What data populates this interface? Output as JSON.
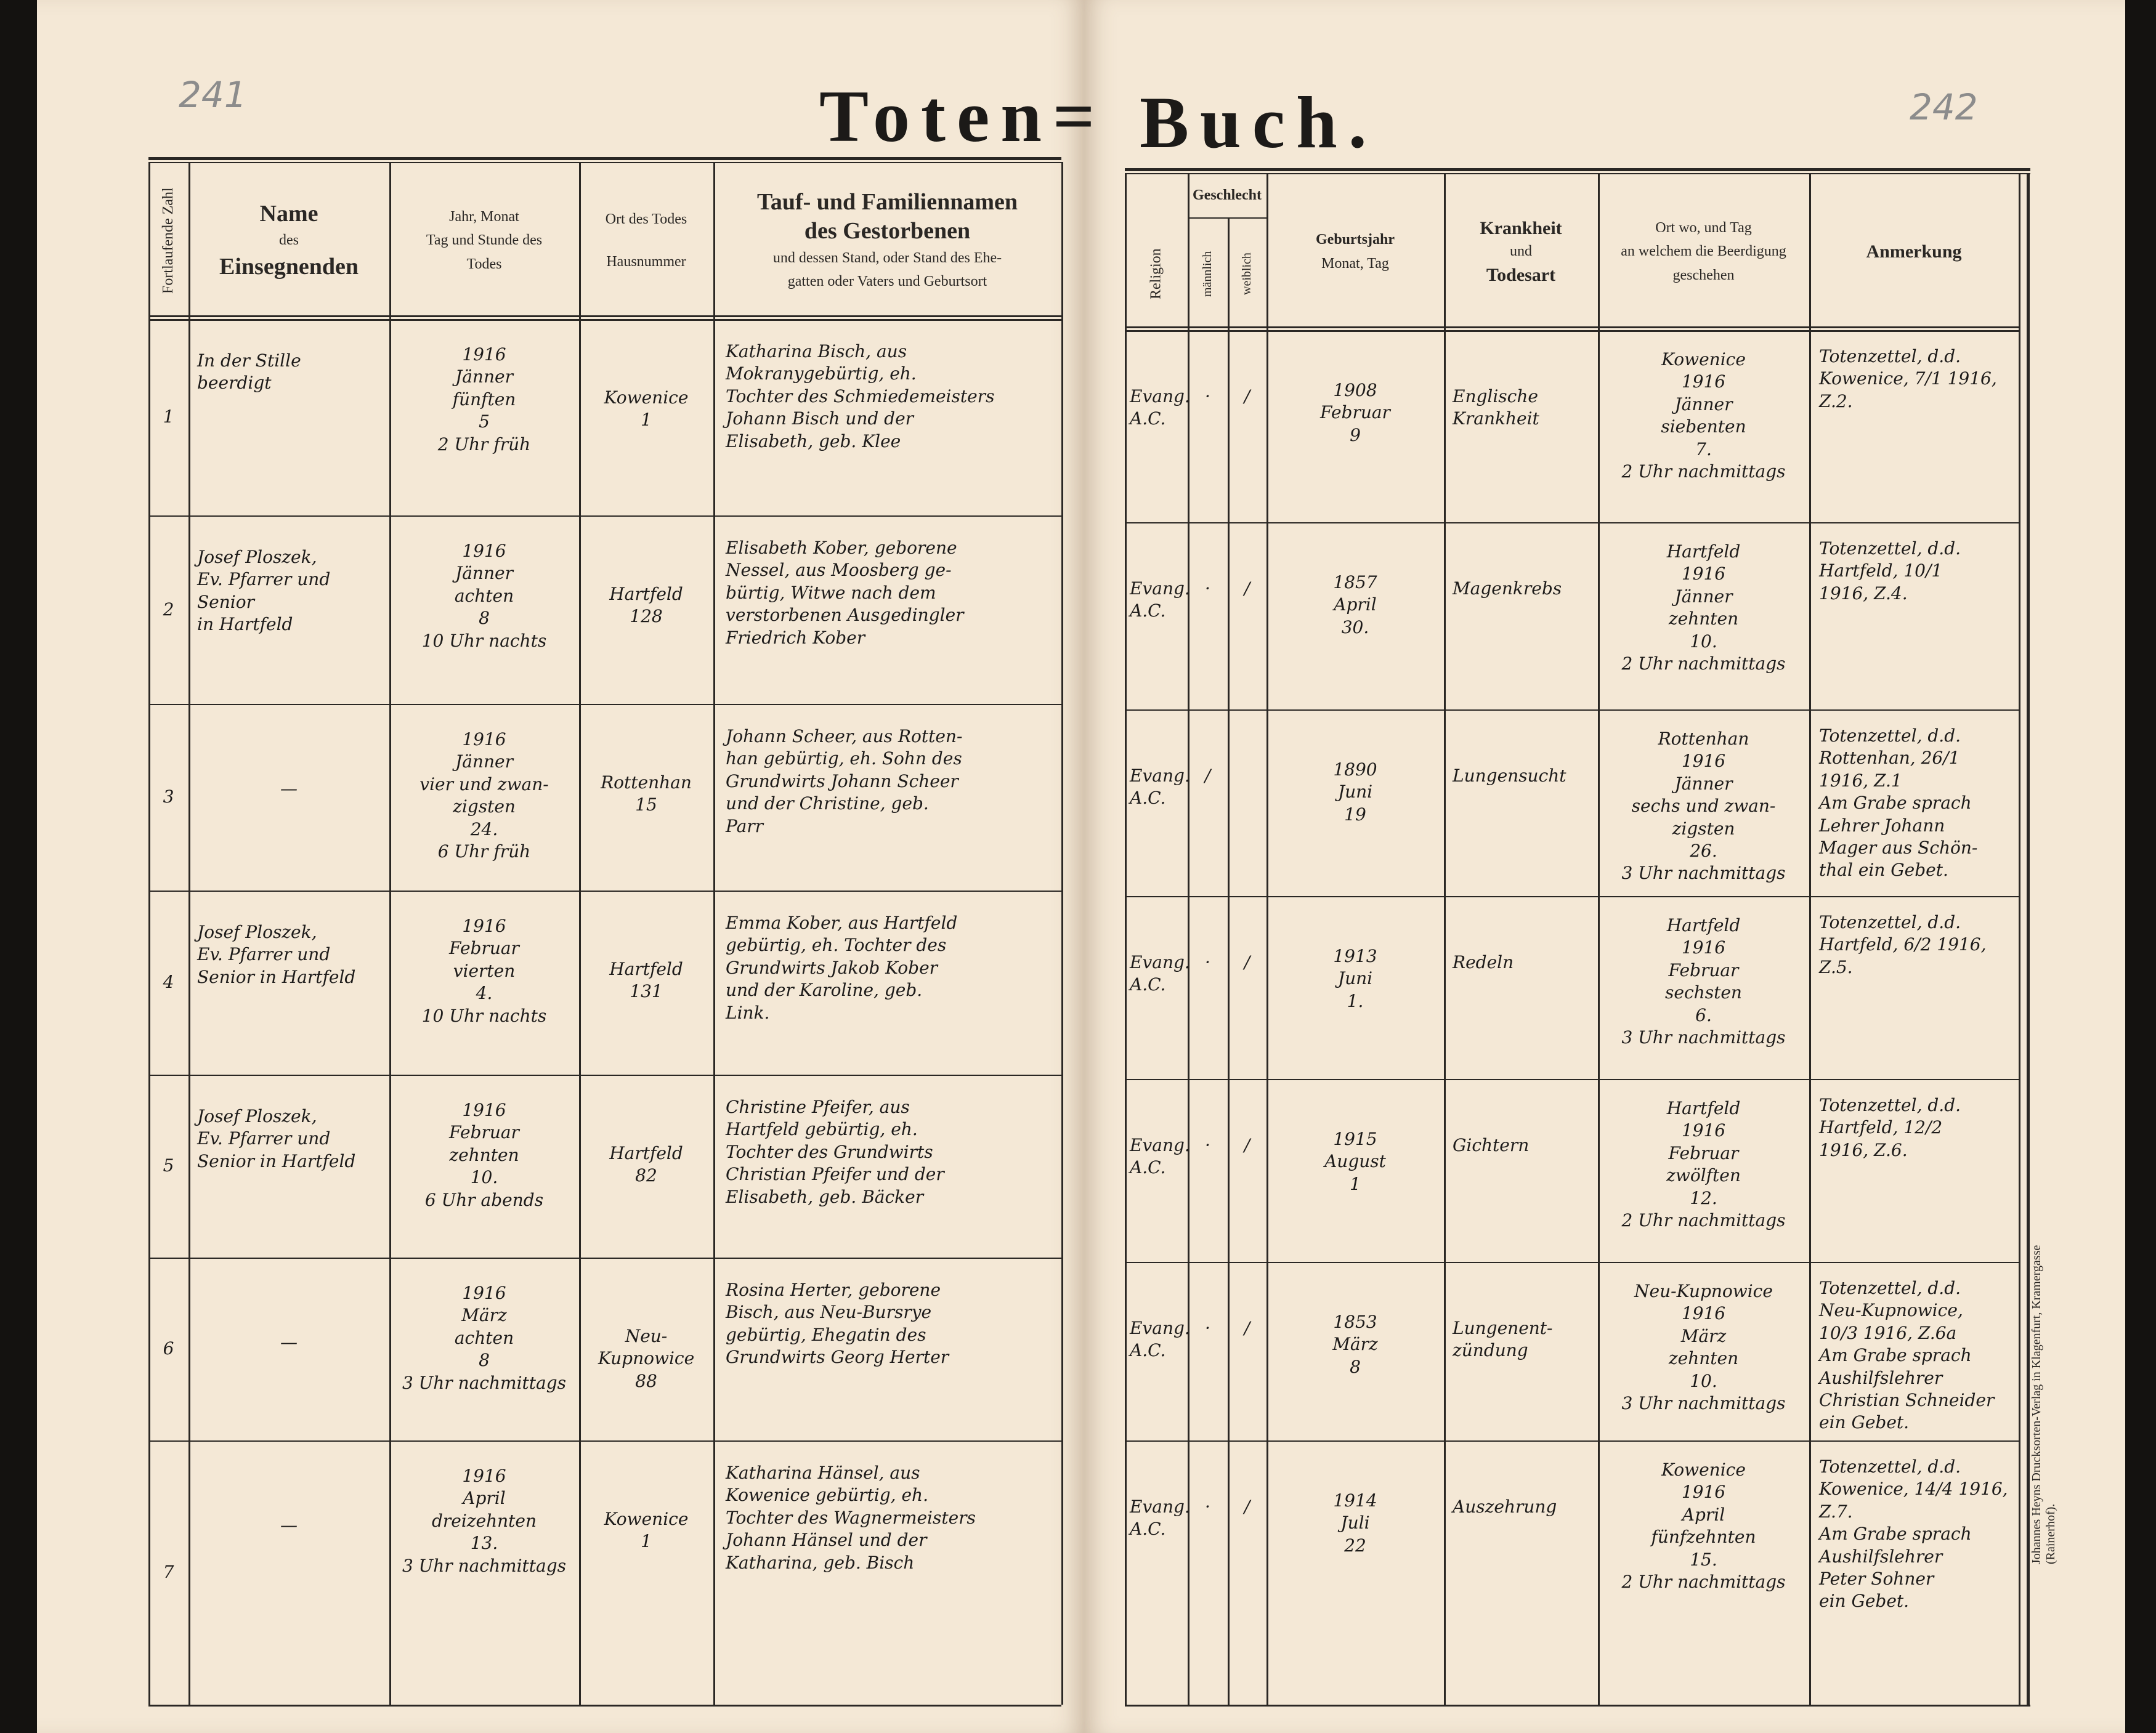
{
  "page_numbers": {
    "left": "241",
    "right": "242"
  },
  "title": {
    "left": "Toten=",
    "right": "Buch."
  },
  "left_headers": {
    "number": "Fortlaufende Zahl",
    "officiant": {
      "line1": "Name",
      "line2": "des",
      "line3": "Einsegnenden"
    },
    "death_date": {
      "line1": "Jahr, Monat",
      "line2": "Tag und Stunde des",
      "line3": "Todes"
    },
    "death_place": {
      "line1": "Ort des Todes",
      "line2": "Hausnummer"
    },
    "deceased": {
      "line1": "Tauf- und Familiennamen",
      "line2": "des Gestorbenen",
      "line3": "und dessen Stand, oder Stand des Ehe-",
      "line4": "gatten oder Vaters und Geburtsort"
    }
  },
  "right_headers": {
    "religion": "Religion",
    "sex": "Geschlecht",
    "male": "männlich",
    "female": "weiblich",
    "birth": {
      "line1": "Geburtsjahr",
      "line2": "Monat, Tag"
    },
    "cause": {
      "line1": "Krankheit",
      "line2": "und",
      "line3": "Todesart"
    },
    "burial": {
      "line1": "Ort wo, und Tag",
      "line2": "an welchem die Beerdigung",
      "line3": "geschehen"
    },
    "remarks": "Anmerkung"
  },
  "entries": [
    {
      "num": "1",
      "officiant": [
        "In der Stille",
        "beerdigt"
      ],
      "death_date": [
        "1916",
        "Jänner",
        "fünften",
        "5",
        "2 Uhr früh"
      ],
      "death_place": [
        "Kowenice",
        "1"
      ],
      "deceased": [
        "Katharina Bisch, aus",
        "Mokranygebürtig, eh.",
        "Tochter des Schmiedemeisters",
        "Johann Bisch und der",
        "Elisabeth, geb. Klee"
      ],
      "religion": [
        "Evang.",
        "A.C."
      ],
      "male": "·",
      "female": "/",
      "birth": [
        "1908",
        "Februar",
        "9"
      ],
      "cause": [
        "Englische",
        "Krankheit"
      ],
      "burial": [
        "Kowenice",
        "1916",
        "Jänner",
        "siebenten",
        "7.",
        "2 Uhr nachmittags"
      ],
      "remarks": [
        "Totenzettel, d.d.",
        "Kowenice, 7/1 1916,",
        "Z.2."
      ]
    },
    {
      "num": "2",
      "officiant": [
        "Josef Ploszek,",
        "Ev. Pfarrer und Senior",
        "in Hartfeld"
      ],
      "death_date": [
        "1916",
        "Jänner",
        "achten",
        "8",
        "10 Uhr nachts"
      ],
      "death_place": [
        "Hartfeld",
        "128"
      ],
      "deceased": [
        "Elisabeth Kober, geborene",
        "Nessel, aus Moosberg ge-",
        "bürtig, Witwe nach dem",
        "verstorbenen Ausgedingler",
        "Friedrich Kober"
      ],
      "religion": [
        "Evang.",
        "A.C."
      ],
      "male": "·",
      "female": "/",
      "birth": [
        "1857",
        "April",
        "30."
      ],
      "cause": [
        "Magenkrebs"
      ],
      "burial": [
        "Hartfeld",
        "1916",
        "Jänner",
        "zehnten",
        "10.",
        "2 Uhr nachmittags"
      ],
      "remarks": [
        "Totenzettel, d.d.",
        "Hartfeld, 10/1",
        "1916, Z.4."
      ]
    },
    {
      "num": "3",
      "officiant": [
        "—"
      ],
      "death_date": [
        "1916",
        "Jänner",
        "vier und zwan-",
        "zigsten",
        "24.",
        "6 Uhr früh"
      ],
      "death_place": [
        "Rottenhan",
        "15"
      ],
      "deceased": [
        "Johann Scheer, aus Rotten-",
        "han gebürtig, eh. Sohn des",
        "Grundwirts Johann Scheer",
        "und der Christine, geb.",
        "Parr"
      ],
      "religion": [
        "Evang.",
        "A.C."
      ],
      "male": "/",
      "female": "",
      "birth": [
        "1890",
        "Juni",
        "19"
      ],
      "cause": [
        "Lungensucht"
      ],
      "burial": [
        "Rottenhan",
        "1916",
        "Jänner",
        "sechs und zwan-",
        "zigsten",
        "26.",
        "3 Uhr nachmittags"
      ],
      "remarks": [
        "Totenzettel, d.d.",
        "Rottenhan, 26/1",
        "1916, Z.1",
        "Am Grabe sprach",
        "Lehrer Johann",
        "Mager aus Schön-",
        "thal ein Gebet."
      ]
    },
    {
      "num": "4",
      "officiant": [
        "Josef Ploszek,",
        "Ev. Pfarrer und",
        "Senior in Hartfeld"
      ],
      "death_date": [
        "1916",
        "Februar",
        "vierten",
        "4.",
        "10 Uhr nachts"
      ],
      "death_place": [
        "Hartfeld",
        "131"
      ],
      "deceased": [
        "Emma Kober, aus Hartfeld",
        "gebürtig, eh. Tochter des",
        "Grundwirts Jakob Kober",
        "und der Karoline, geb.",
        "Link."
      ],
      "religion": [
        "Evang.",
        "A.C."
      ],
      "male": "·",
      "female": "/",
      "birth": [
        "1913",
        "Juni",
        "1."
      ],
      "cause": [
        "Redeln"
      ],
      "burial": [
        "Hartfeld",
        "1916",
        "Februar",
        "sechsten",
        "6.",
        "3 Uhr nachmittags"
      ],
      "remarks": [
        "Totenzettel, d.d.",
        "Hartfeld, 6/2 1916,",
        "Z.5."
      ]
    },
    {
      "num": "5",
      "officiant": [
        "Josef Ploszek,",
        "Ev. Pfarrer und",
        "Senior in Hartfeld"
      ],
      "death_date": [
        "1916",
        "Februar",
        "zehnten",
        "10.",
        "6 Uhr abends"
      ],
      "death_place": [
        "Hartfeld",
        "82"
      ],
      "deceased": [
        "Christine Pfeifer, aus",
        "Hartfeld gebürtig, eh.",
        "Tochter des Grundwirts",
        "Christian Pfeifer und der",
        "Elisabeth, geb. Bäcker"
      ],
      "religion": [
        "Evang.",
        "A.C."
      ],
      "male": "·",
      "female": "/",
      "birth": [
        "1915",
        "August",
        "1"
      ],
      "cause": [
        "Gichtern"
      ],
      "burial": [
        "Hartfeld",
        "1916",
        "Februar",
        "zwölften",
        "12.",
        "2 Uhr nachmittags"
      ],
      "remarks": [
        "Totenzettel, d.d.",
        "Hartfeld, 12/2",
        "1916, Z.6."
      ]
    },
    {
      "num": "6",
      "officiant": [
        "—"
      ],
      "death_date": [
        "1916",
        "März",
        "achten",
        "8",
        "3 Uhr nachmittags"
      ],
      "death_place": [
        "Neu-",
        "Kupnowice",
        "88"
      ],
      "deceased": [
        "Rosina Herter, geborene",
        "Bisch, aus Neu-Bursrye",
        "gebürtig, Ehegatin des",
        "Grundwirts Georg Herter"
      ],
      "religion": [
        "Evang.",
        "A.C."
      ],
      "male": "·",
      "female": "/",
      "birth": [
        "1853",
        "März",
        "8"
      ],
      "cause": [
        "Lungenent-",
        "zündung"
      ],
      "burial": [
        "Neu-Kupnowice",
        "1916",
        "März",
        "zehnten",
        "10.",
        "3 Uhr nachmittags"
      ],
      "remarks": [
        "Totenzettel, d.d.",
        "Neu-Kupnowice,",
        "10/3 1916, Z.6a",
        "Am Grabe sprach",
        "Aushilfslehrer",
        "Christian Schneider",
        "ein Gebet."
      ]
    },
    {
      "num": "7",
      "officiant": [
        "—"
      ],
      "death_date": [
        "1916",
        "April",
        "dreizehnten",
        "13.",
        "3 Uhr nachmittags"
      ],
      "death_place": [
        "Kowenice",
        "1"
      ],
      "deceased": [
        "Katharina Hänsel, aus",
        "Kowenice gebürtig, eh.",
        "Tochter des Wagnermeisters",
        "Johann Hänsel und der",
        "Katharina, geb. Bisch"
      ],
      "religion": [
        "Evang.",
        "A.C."
      ],
      "male": "·",
      "female": "/",
      "birth": [
        "1914",
        "Juli",
        "22"
      ],
      "cause": [
        "Auszehrung"
      ],
      "burial": [
        "Kowenice",
        "1916",
        "April",
        "fünfzehnten",
        "15.",
        "2 Uhr nachmittags"
      ],
      "remarks": [
        "Totenzettel, d.d.",
        "Kowenice, 14/4 1916,",
        "Z.7.",
        "Am Grabe sprach",
        "Aushilfslehrer",
        "Peter Sohner",
        "ein Gebet."
      ]
    }
  ],
  "publisher": "Johannes Heyns Drucksorten-Verlag in Klagenfurt, Kramergasse (Rainerhof).",
  "colors": {
    "paper": "#f4e8d6",
    "ink": "#1d1b1a",
    "print": "#2a2724",
    "pencil": "#8c8c8c"
  }
}
